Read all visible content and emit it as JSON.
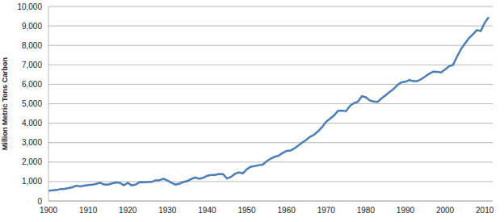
{
  "chart_data": {
    "type": "line",
    "y_label": "Million Metric Tons Carbon",
    "x": [
      1900,
      1901,
      1902,
      1903,
      1904,
      1905,
      1906,
      1907,
      1908,
      1909,
      1910,
      1911,
      1912,
      1913,
      1914,
      1915,
      1916,
      1917,
      1918,
      1919,
      1920,
      1921,
      1922,
      1923,
      1924,
      1925,
      1926,
      1927,
      1928,
      1929,
      1930,
      1931,
      1932,
      1933,
      1934,
      1935,
      1936,
      1937,
      1938,
      1939,
      1940,
      1941,
      1942,
      1943,
      1944,
      1945,
      1946,
      1947,
      1948,
      1949,
      1950,
      1951,
      1952,
      1953,
      1954,
      1955,
      1956,
      1957,
      1958,
      1959,
      1960,
      1961,
      1962,
      1963,
      1964,
      1965,
      1966,
      1967,
      1968,
      1969,
      1970,
      1971,
      1972,
      1973,
      1974,
      1975,
      1976,
      1977,
      1978,
      1979,
      1980,
      1981,
      1982,
      1983,
      1984,
      1985,
      1986,
      1987,
      1988,
      1989,
      1990,
      1991,
      1992,
      1993,
      1994,
      1995,
      1996,
      1997,
      1998,
      1999,
      2000,
      2001,
      2002,
      2003,
      2004,
      2005,
      2006,
      2007,
      2008,
      2009,
      2010,
      2011
    ],
    "values": [
      534,
      552,
      566,
      617,
      624,
      663,
      707,
      784,
      750,
      785,
      819,
      836,
      879,
      943,
      850,
      838,
      901,
      955,
      936,
      806,
      932,
      803,
      845,
      970,
      963,
      975,
      983,
      1062,
      1065,
      1145,
      1053,
      940,
      847,
      893,
      973,
      1027,
      1130,
      1209,
      1142,
      1192,
      1299,
      1334,
      1342,
      1391,
      1383,
      1160,
      1238,
      1392,
      1469,
      1419,
      1630,
      1767,
      1795,
      1841,
      1865,
      2043,
      2177,
      2270,
      2330,
      2462,
      2577,
      2594,
      2700,
      2848,
      3008,
      3145,
      3305,
      3411,
      3588,
      3800,
      4076,
      4231,
      4399,
      4635,
      4644,
      4615,
      4883,
      5029,
      5105,
      5387,
      5332,
      5168,
      5113,
      5093,
      5277,
      5439,
      5606,
      5752,
      5965,
      6097,
      6127,
      6217,
      6164,
      6162,
      6266,
      6398,
      6542,
      6651,
      6643,
      6610,
      6765,
      6927,
      6996,
      7416,
      7807,
      8093,
      8370,
      8566,
      8783,
      8740,
      9167,
      9449
    ],
    "color": "#4a7ebb",
    "xlim": [
      1900,
      2012
    ],
    "xticks": [
      1900,
      1910,
      1920,
      1930,
      1940,
      1950,
      1960,
      1970,
      1980,
      1990,
      2000,
      2010
    ],
    "ylim": [
      0,
      10000
    ],
    "yticks": [
      0,
      {
        "value": 1000,
        "label": "1,000"
      },
      {
        "value": 2000,
        "label": "2,000"
      },
      {
        "value": 3000,
        "label": "3,000"
      },
      {
        "value": 4000,
        "label": "4,000"
      },
      {
        "value": 5000,
        "label": "5,000"
      },
      {
        "value": 6000,
        "label": "6,000"
      },
      {
        "value": 7000,
        "label": "7,000"
      },
      {
        "value": 8000,
        "label": "8,000"
      },
      {
        "value": 9000,
        "label": "9,000"
      },
      {
        "value": 10000,
        "label": "10,000"
      }
    ],
    "grid": true
  }
}
